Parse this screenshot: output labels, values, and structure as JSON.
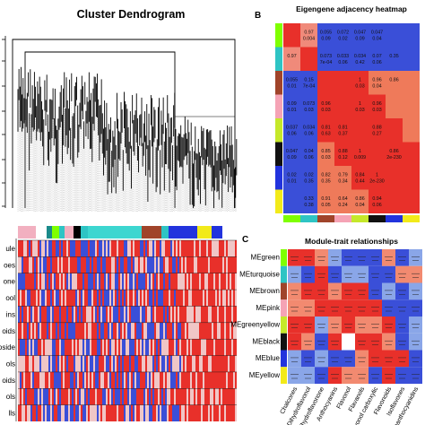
{
  "panel_a": {
    "title": "Cluster Dendrogram",
    "trait_labels": [
      "ule",
      "oes",
      "one",
      "ool",
      "ins",
      "oids",
      "oside",
      "ols",
      "oids",
      "ols",
      "lls"
    ]
  },
  "panel_b": {
    "tag": "B",
    "title": "Eigengene adjacency heatmap",
    "side_colors": [
      "#7fff00",
      "#2ec4c4",
      "#a0442a",
      "#f5a3b5",
      "#c5e82a",
      "#111111",
      "#2233dd",
      "#f2ea1a"
    ],
    "rows": [
      [
        "",
        "0.97 / 0.004",
        "0.055 / 0.09",
        "0.072 / 0.02",
        "0.047 / 0.09",
        "0.047 / 0.04",
        "",
        ""
      ],
      [
        "0.97",
        "",
        "0.073 / 7e-04",
        "0.033 / 0.06",
        "0.034 / 0.42",
        "0.07 / 0.06",
        "0.35",
        ""
      ],
      [
        "0.055 / 0.01",
        "0.15 / 7e-04",
        "",
        "",
        "1 / 0.03",
        "0.96 / 0.04",
        "0.86",
        ""
      ],
      [
        "0.09 / 0.01",
        "0.073 / 0.03",
        "0.96 / 0.03",
        "",
        "1 / 0.03",
        "0.96 / 0.03",
        "",
        ""
      ],
      [
        "0.037 / 0.06",
        "0.034 / 0.06",
        "0.81 / 0.63",
        "0.81 / 0.37",
        "",
        "0.88 / 0.27",
        "",
        ""
      ],
      [
        "0.047 / 0.09",
        "0.04 / 0.06",
        "0.85 / 0.03",
        "0.88 / 0.12",
        "1 / 0.009",
        "",
        "0.86 / 2e-230",
        ""
      ],
      [
        "0.02 / 0.01",
        "0.02 / 0.35",
        "0.82 / 0.35",
        "0.79 / 0.34",
        "0.84 / 0.44",
        "1 / 2e-230",
        "",
        ""
      ],
      [
        "",
        "0.33 / 0.38",
        "0.91 / 0.05",
        "0.64 / 0.24",
        "0.86 / 0.04",
        "0.94 / 0.06",
        "",
        ""
      ]
    ]
  },
  "panel_c": {
    "tag": "C",
    "title": "Module-trait relationships",
    "modules": [
      "MEgreen",
      "MEturquoise",
      "MEbrown",
      "MEpink",
      "MEgreenyellow",
      "MEblack",
      "MEblue",
      "MEyellow"
    ],
    "traits": [
      "Chalcones",
      "Dihydroflavonol",
      "Dihydroflavonone",
      "Anthocyanins",
      "Flavonol",
      "Flavanols",
      "Flavonol carboxylic",
      "Flavonoids",
      "Isoflavones",
      "Proanthocyanidins"
    ]
  },
  "colors": {
    "red": "#e8302a",
    "blue": "#3a4fd8",
    "white": "#ffffff",
    "dendro": "#000000"
  }
}
